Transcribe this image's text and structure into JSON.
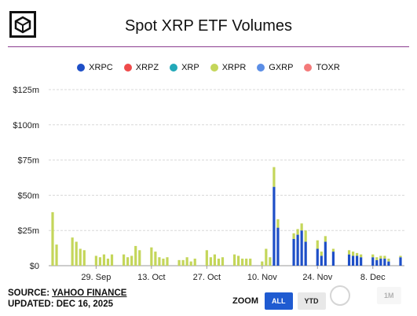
{
  "header": {
    "title": "Spot XRP ETF Volumes"
  },
  "legend": [
    {
      "name": "XRPC",
      "color": "#1e4fc7"
    },
    {
      "name": "XRPZ",
      "color": "#ef4b4b"
    },
    {
      "name": "XRP",
      "color": "#22a8b8"
    },
    {
      "name": "XRPR",
      "color": "#c4d65a"
    },
    {
      "name": "GXRP",
      "color": "#5b8ee6"
    },
    {
      "name": "TOXR",
      "color": "#f47a7a"
    }
  ],
  "footer": {
    "source_prefix": "SOURCE: ",
    "source_link": "YAHOO FINANCE",
    "updated": "UPDATED: DEC 16, 2025"
  },
  "zoom": {
    "label": "ZOOM",
    "buttons": [
      "ALL",
      "YTD",
      "1M"
    ],
    "active": "ALL"
  },
  "chart_data": {
    "type": "bar",
    "stacked": true,
    "title": "Spot XRP ETF Volumes",
    "x_tick_labels": [
      "29. Sep",
      "13. Oct",
      "27. Oct",
      "10. Nov",
      "24. Nov",
      "8. Dec"
    ],
    "y_tick_labels": [
      "$0",
      "$25m",
      "$50m",
      "$75m",
      "$100m",
      "$125m"
    ],
    "ylim": [
      0,
      125
    ],
    "y_unit": "USD millions",
    "legend_position": "top",
    "grid": true,
    "categories": [
      "2025-09-18",
      "2025-09-19",
      "2025-09-22",
      "2025-09-23",
      "2025-09-24",
      "2025-09-25",
      "2025-09-26",
      "2025-09-29",
      "2025-09-30",
      "2025-10-01",
      "2025-10-02",
      "2025-10-03",
      "2025-10-06",
      "2025-10-07",
      "2025-10-08",
      "2025-10-09",
      "2025-10-10",
      "2025-10-13",
      "2025-10-14",
      "2025-10-15",
      "2025-10-16",
      "2025-10-17",
      "2025-10-20",
      "2025-10-21",
      "2025-10-22",
      "2025-10-23",
      "2025-10-24",
      "2025-10-27",
      "2025-10-28",
      "2025-10-29",
      "2025-10-30",
      "2025-10-31",
      "2025-11-03",
      "2025-11-04",
      "2025-11-05",
      "2025-11-06",
      "2025-11-07",
      "2025-11-10",
      "2025-11-11",
      "2025-11-12",
      "2025-11-13",
      "2025-11-14",
      "2025-11-17",
      "2025-11-18",
      "2025-11-19",
      "2025-11-20",
      "2025-11-21",
      "2025-11-24",
      "2025-11-25",
      "2025-11-26",
      "2025-11-28",
      "2025-12-01",
      "2025-12-02",
      "2025-12-03",
      "2025-12-04",
      "2025-12-05",
      "2025-12-08",
      "2025-12-09",
      "2025-12-10",
      "2025-12-11",
      "2025-12-12",
      "2025-12-15"
    ],
    "series": [
      {
        "name": "XRPC",
        "color": "#1e4fc7",
        "values": [
          0,
          0,
          0,
          0,
          0,
          0,
          0,
          0,
          0,
          0,
          0,
          0,
          0,
          0,
          0,
          0,
          0,
          0,
          0,
          0,
          0,
          0,
          0,
          0,
          0,
          0,
          0,
          0,
          0,
          0,
          0,
          0,
          0,
          0,
          0,
          0,
          0,
          0,
          0,
          0,
          56,
          27,
          0,
          19,
          22,
          25,
          17,
          12,
          7,
          17,
          10,
          0,
          8,
          7,
          7,
          6,
          6,
          4,
          5,
          5,
          3,
          6
        ]
      },
      {
        "name": "XRPZ",
        "color": "#ef4b4b",
        "values": [
          0,
          0,
          0,
          0,
          0,
          0,
          0,
          0,
          0,
          0,
          0,
          0,
          0,
          0,
          0,
          0,
          0,
          0,
          0,
          0,
          0,
          0,
          0,
          0,
          0,
          0,
          0,
          0,
          0,
          0,
          0,
          0,
          0,
          0,
          0,
          0,
          0,
          0,
          0,
          0,
          0,
          0,
          0,
          0,
          0,
          0,
          0,
          0,
          0,
          0,
          0,
          0,
          0,
          0,
          0,
          0,
          0,
          0,
          0,
          0,
          0,
          0
        ]
      },
      {
        "name": "XRP",
        "color": "#22a8b8",
        "values": [
          0,
          0,
          0,
          0,
          0,
          0,
          0,
          0,
          0,
          0,
          0,
          0,
          0,
          0,
          0,
          0,
          0,
          0,
          0,
          0,
          0,
          0,
          0,
          0,
          0,
          0,
          0,
          0,
          0,
          0,
          0,
          0,
          0,
          0,
          0,
          0,
          0,
          0,
          0,
          0,
          0,
          0,
          0,
          0,
          0,
          0,
          0,
          0,
          0,
          0,
          0,
          0,
          0,
          0,
          0,
          0,
          0,
          0,
          0,
          0,
          0,
          0
        ]
      },
      {
        "name": "XRPR",
        "color": "#c4d65a",
        "values": [
          38,
          15,
          0,
          20,
          17,
          12,
          11,
          7,
          6,
          8,
          5,
          8,
          8,
          6,
          7,
          14,
          11,
          13,
          10,
          6,
          5,
          6,
          4,
          4,
          6,
          3,
          5,
          11,
          6,
          8,
          5,
          6,
          8,
          7,
          5,
          5,
          5,
          3,
          12,
          6,
          14,
          6,
          0,
          4,
          4,
          5,
          8,
          6,
          3,
          4,
          2,
          0,
          3,
          3,
          2,
          2,
          2,
          2,
          2,
          2,
          2,
          1
        ]
      },
      {
        "name": "GXRP",
        "color": "#5b8ee6",
        "values": [
          0,
          0,
          0,
          0,
          0,
          0,
          0,
          0,
          0,
          0,
          0,
          0,
          0,
          0,
          0,
          0,
          0,
          0,
          0,
          0,
          0,
          0,
          0,
          0,
          0,
          0,
          0,
          0,
          0,
          0,
          0,
          0,
          0,
          0,
          0,
          0,
          0,
          0,
          0,
          0,
          0,
          0,
          0,
          0,
          0,
          0,
          0,
          0,
          0,
          0,
          0,
          0,
          0,
          0,
          0,
          0,
          0,
          0,
          0,
          0,
          0,
          0
        ]
      },
      {
        "name": "TOXR",
        "color": "#f47a7a",
        "values": [
          0,
          0,
          0,
          0,
          0,
          0,
          0,
          0,
          0,
          0,
          0,
          0,
          0,
          0,
          0,
          0,
          0,
          0,
          0,
          0,
          0,
          0,
          0,
          0,
          0,
          0,
          0,
          0,
          0,
          0,
          0,
          0,
          0,
          0,
          0,
          0,
          0,
          0,
          0,
          0,
          0,
          0,
          0,
          0,
          0,
          0,
          0,
          0,
          0,
          0,
          0,
          0,
          0,
          0,
          0,
          0,
          0,
          0,
          0,
          0,
          0,
          0
        ]
      }
    ]
  }
}
